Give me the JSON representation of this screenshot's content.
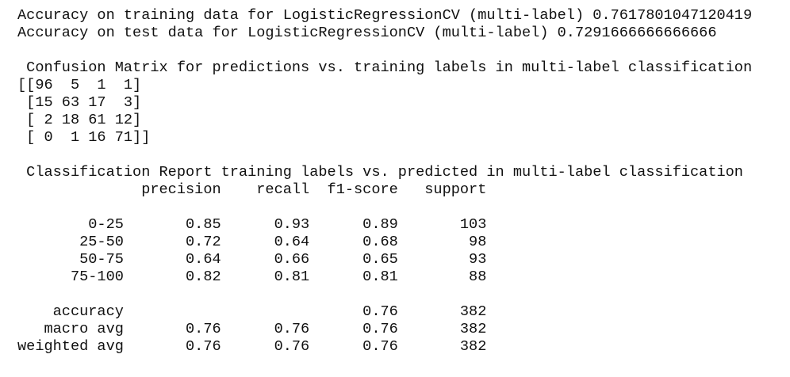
{
  "accuracy": {
    "train": "Accuracy on training data for LogisticRegressionCV (multi-label) 0.7617801047120419",
    "test": "Accuracy on test data for LogisticRegressionCV (multi-label) 0.7291666666666666"
  },
  "confusion_matrix": {
    "title": " Confusion Matrix for predictions vs. training labels in multi-label classification",
    "rows": [
      "[[96  5  1  1]",
      " [15 63 17  3]",
      " [ 2 18 61 12]",
      " [ 0  1 16 71]]"
    ]
  },
  "classification_report": {
    "title": " Classification Report training labels vs. predicted in multi-label classification",
    "header": "              precision    recall  f1-score   support",
    "rows": [
      "        0-25       0.85      0.93      0.89       103",
      "       25-50       0.72      0.64      0.68        98",
      "       50-75       0.64      0.66      0.65        93",
      "      75-100       0.82      0.81      0.81        88"
    ],
    "summary": [
      "    accuracy                           0.76       382",
      "   macro avg       0.76      0.76      0.76       382",
      "weighted avg       0.76      0.76      0.76       382"
    ]
  }
}
